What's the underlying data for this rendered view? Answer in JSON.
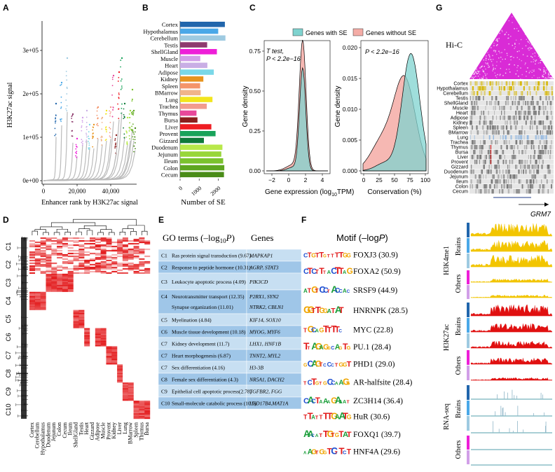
{
  "panel_labels": [
    "A",
    "B",
    "C",
    "D",
    "E",
    "F",
    "G"
  ],
  "panel_a": {
    "ylabel": "H3K27ac signal",
    "xlabel": "Enhancer rank by H3K27ac signal",
    "yticks": [
      "0e+00",
      "1e+05",
      "2e+05",
      "3e+05"
    ],
    "xticks": [
      "0",
      "20,000",
      "40,000"
    ]
  },
  "panel_b": {
    "xlabel": "Number of SE",
    "xticks": [
      "0",
      "1000",
      "2000"
    ]
  },
  "panel_c": {
    "legend": [
      "Genes with SE",
      "Genes without SE"
    ],
    "colors": {
      "with": "#7fd3cf",
      "without": "#f4aca6"
    },
    "left": {
      "ylabel": "Gene density",
      "xlabel": "Gene expression (log",
      "xlabel_sub": "10",
      "xlabel_end": "TPM)",
      "stat_line1": "T test,",
      "stat_line2": "P < 2.2e−16",
      "yticks": [
        "0.00",
        "0.25",
        "0.50",
        "0.75"
      ],
      "xticks": [
        "−2",
        "0",
        "2",
        "4"
      ]
    },
    "right": {
      "ylabel": "Gene density",
      "xlabel": "Conservation (%)",
      "stat": "P < 2.2e−16",
      "yticks": [
        "0.000",
        "0.005",
        "0.010",
        "0.015",
        "0.020"
      ],
      "xticks": [
        "0",
        "25",
        "50",
        "75",
        "100"
      ]
    }
  },
  "panel_d": {
    "clusters": [
      "C1",
      "C2",
      "C3",
      "C4",
      "C5",
      "C6",
      "C7",
      "C8",
      "C9",
      "C10"
    ],
    "columns": [
      "Cortex",
      "Cerebellum",
      "Hypothalamus",
      "Duodenum",
      "Jejunum",
      "Colon",
      "Cecum",
      "Ileum",
      "ShellGland",
      "Testis",
      "Heart",
      "Gizzard",
      "Adipose",
      "Muscle",
      "Provent",
      "Kidney",
      "Liver",
      "Lung",
      "BMarrow",
      "Spleen",
      "Thymus",
      "Bursa"
    ]
  },
  "panel_e": {
    "header_go": "GO terms (–log",
    "header_go_sub": "10",
    "header_go_p": "P",
    "header_go_end": ")",
    "header_genes": "Genes",
    "rows": [
      {
        "id": "C1",
        "term": "Ras protein signal transduction (9.67)",
        "genes": "MAPKAP1"
      },
      {
        "id": "C2",
        "term": "Response to peptide hormone (10.31)",
        "genes": "AGRP, STAT3"
      },
      {
        "id": "C3",
        "term": "Leukocyte apoptotic process (4.09)",
        "genes": "PIK3CD"
      },
      {
        "id": "C4",
        "term": "Neurotransmitter transport (12.35)",
        "term2": "Synapse organization (11.01)",
        "genes": "P2RX1, SYN2",
        "genes2": "NTRK2, CBLN1"
      },
      {
        "id": "C5",
        "term": "Myelination (4.84)",
        "genes": "KIF14, SOX10"
      },
      {
        "id": "C6",
        "term": "Muscle tissue development (10.18)",
        "genes": "MYOG, MYF6"
      },
      {
        "id": "C7",
        "term": "Kidney development (11.7)",
        "genes": "LHX1, HNF1B"
      },
      {
        "id": "C7",
        "term": "Heart morphogenesis (6.87)",
        "genes": "TNNT2, MYL2"
      },
      {
        "id": "C7",
        "term": "Sex differentiation (4.16)",
        "genes": "H3-3B"
      },
      {
        "id": "C8",
        "term": "Female sex differentiation (4.3)",
        "genes": "NR5A1, DACH2"
      },
      {
        "id": "C9",
        "term": "Epithelial cell apoptotic process(2.78)",
        "genes": "TGFBR2, FGG"
      },
      {
        "id": "C10",
        "term": "Small-molecule catabolic process (10.5)",
        "genes": "HSD17B4,MAT1A"
      }
    ]
  },
  "panel_f": {
    "header": "Motif (–log",
    "header_p": "P",
    "header_end": ")",
    "motifs": [
      {
        "seq": "CTGTTGTTTTGG",
        "label": "FOXJ3 (30.9)"
      },
      {
        "seq": "CTCTTTACTTAG",
        "label": "FOXA2 (50.9)"
      },
      {
        "seq": "ATGTCCTACCAC",
        "label": "SRSF9 (44.9)"
      },
      {
        "seq": "GGTTGGATAT",
        "label": "HNRNPK (28.5)"
      },
      {
        "seq": "TGCAGTTTTC",
        "label": "MYC (22.8)"
      },
      {
        "seq": "TTAGAGGCAGTG",
        "label": "PU.1 (28.4)"
      },
      {
        "seq": "GCAGTCCCTGGT",
        "label": "PHD1 (29.0)"
      },
      {
        "seq": "TCTGTGCCAAGG",
        "label": "AR-halfsite (28.4)"
      },
      {
        "seq": "CACTAAAGAAAT",
        "label": "ZC3H14 (36.4)"
      },
      {
        "seq": "TTATTTTGAATG",
        "label": "HuR (30.6)"
      },
      {
        "seq": "AACATTGTGTAT",
        "label": "FOXQ1 (39.7)"
      },
      {
        "seq": "AAGTGGTCTTCT",
        "label": "HNF4A (29.6)"
      }
    ]
  },
  "panel_g": {
    "hic_label": "Hi-C",
    "gene": "GRM7",
    "tracks_label_k4": "H3K4me1",
    "tracks_label_k27": "H3K27ac",
    "tracks_label_rna": "RNA-seq",
    "brains": "Brains",
    "others": "Others"
  },
  "tissues": [
    {
      "name": "Cortex",
      "color": "#2166ac",
      "value": 2350
    },
    {
      "name": "Hypothalamus",
      "color": "#4aa8e8",
      "value": 2000
    },
    {
      "name": "Cerebellum",
      "color": "#9ecae1",
      "value": 2380
    },
    {
      "name": "Testis",
      "color": "#8e3b6e",
      "value": 1420
    },
    {
      "name": "ShellGland",
      "color": "#ee1fd8",
      "value": 1930
    },
    {
      "name": "Muscle",
      "color": "#d19fe8",
      "value": 1060
    },
    {
      "name": "Heart",
      "color": "#c9aee5",
      "value": 1430
    },
    {
      "name": "Adipose",
      "color": "#7ad8e8",
      "value": 1770
    },
    {
      "name": "Kidney",
      "color": "#e8941f",
      "value": 1220
    },
    {
      "name": "Spleen",
      "color": "#f4956b",
      "value": 1050
    },
    {
      "name": "BMarrow",
      "color": "#f0b48a",
      "value": 1080
    },
    {
      "name": "Lung",
      "color": "#f2e51d",
      "value": 1700
    },
    {
      "name": "Trachea",
      "color": "#f29c8e",
      "value": 1400
    },
    {
      "name": "Thymus",
      "color": "#e8489a",
      "value": 860
    },
    {
      "name": "Bursa",
      "color": "#8b1e1e",
      "value": 910
    },
    {
      "name": "Liver",
      "color": "#ee1d23",
      "value": 1640
    },
    {
      "name": "Provent",
      "color": "#19a35a",
      "value": 1860
    },
    {
      "name": "Gizzard",
      "color": "#0f7a3a",
      "value": 1250
    },
    {
      "name": "Duodenum",
      "color": "#b8e84a",
      "value": 2220
    },
    {
      "name": "Jejunum",
      "color": "#98d63a",
      "value": 2160
    },
    {
      "name": "Ileum",
      "color": "#7bc22e",
      "value": 2260
    },
    {
      "name": "Colon",
      "color": "#5ea620",
      "value": 2320
    },
    {
      "name": "Cecum",
      "color": "#4a8c18",
      "value": 2300
    }
  ],
  "chart_data": {
    "type": "bar",
    "orientation": "horizontal",
    "xlabel": "Number of SE",
    "categories": [
      "Cortex",
      "Hypothalamus",
      "Cerebellum",
      "Testis",
      "ShellGland",
      "Muscle",
      "Heart",
      "Adipose",
      "Kidney",
      "Spleen",
      "BMarrow",
      "Lung",
      "Trachea",
      "Thymus",
      "Bursa",
      "Liver",
      "Provent",
      "Gizzard",
      "Duodenum",
      "Jejunum",
      "Ileum",
      "Colon",
      "Cecum"
    ],
    "values": [
      2350,
      2000,
      2380,
      1420,
      1930,
      1060,
      1430,
      1770,
      1220,
      1050,
      1080,
      1700,
      1400,
      860,
      910,
      1640,
      1860,
      1250,
      2220,
      2160,
      2260,
      2320,
      2300
    ],
    "xlim": [
      0,
      2500
    ]
  }
}
